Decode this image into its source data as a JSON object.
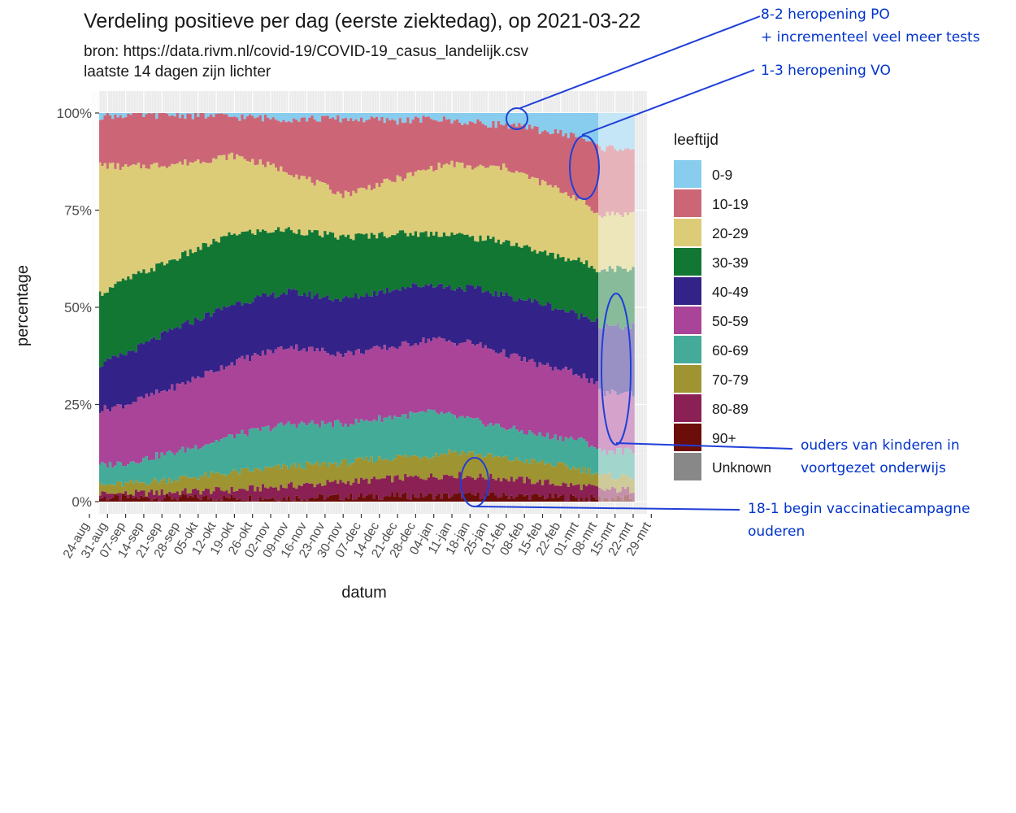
{
  "title": "Verdeling positieve per dag (eerste ziektedag), op 2021-03-22",
  "subtitle_lines": [
    "bron: https://data.rivm.nl/covid-19/COVID-19_casus_landelijk.csv",
    "laatste 14 dagen zijn lichter"
  ],
  "annotations": {
    "po": [
      "8-2 heropening PO",
      "+ incrementeel veel meer tests"
    ],
    "vo": [
      "1-3 heropening VO"
    ],
    "parents": [
      "ouders van kinderen in",
      "voortgezet onderwijs"
    ],
    "vaccination": [
      "18-1 begin vaccinatiecampagne",
      "ouderen"
    ]
  },
  "chart_data": {
    "type": "area",
    "title": "Verdeling positieve per dag (eerste ziektedag), op 2021-03-22",
    "xlabel": "datum",
    "ylabel": "percentage",
    "ylim": [
      0,
      1
    ],
    "y_ticks": [
      "0%",
      "25%",
      "50%",
      "75%",
      "100%"
    ],
    "x_tick_labels": [
      "24-aug",
      "31-aug",
      "07-sep",
      "14-sep",
      "21-sep",
      "28-sep",
      "05-okt",
      "12-okt",
      "19-okt",
      "26-okt",
      "02-nov",
      "09-nov",
      "16-nov",
      "23-nov",
      "30-nov",
      "07-dec",
      "14-dec",
      "21-dec",
      "28-dec",
      "04-jan",
      "11-jan",
      "18-jan",
      "25-jan",
      "01-feb",
      "08-feb",
      "15-feb",
      "22-feb",
      "01-mrt",
      "08-mrt",
      "15-mrt",
      "22-mrt",
      "29-mrt"
    ],
    "stacking": "cumulative share, bottom to top: 90+, 80-89, 70-79, 60-69, 50-59, 40-49, 30-39, 20-29, 10-19, 0-9, Unknown",
    "legend_title": "leeftijd",
    "legend_position": "right",
    "lighter_last_days": 14,
    "boundary_dates": [
      "24-aug",
      "07-sep",
      "28-sep",
      "19-okt",
      "09-nov",
      "30-nov",
      "21-dec",
      "04-jan",
      "11-jan",
      "18-jan",
      "01-feb",
      "15-feb",
      "01-mrt",
      "08-mrt",
      "21-mrt"
    ],
    "series": [
      {
        "name": "90+",
        "color": "#6b0d08",
        "cumulative_top": [
          0.01,
          0.01,
          0.01,
          0.01,
          0.01,
          0.012,
          0.015,
          0.015,
          0.015,
          0.016,
          0.015,
          0.013,
          0.01,
          0.008,
          0.008
        ]
      },
      {
        "name": "80-89",
        "color": "#8b2055",
        "cumulative_top": [
          0.02,
          0.02,
          0.025,
          0.03,
          0.04,
          0.05,
          0.06,
          0.065,
          0.07,
          0.065,
          0.06,
          0.05,
          0.04,
          0.035,
          0.03
        ]
      },
      {
        "name": "70-79",
        "color": "#9e9532",
        "cumulative_top": [
          0.04,
          0.045,
          0.06,
          0.075,
          0.09,
          0.1,
          0.115,
          0.12,
          0.13,
          0.125,
          0.11,
          0.1,
          0.085,
          0.075,
          0.065
        ]
      },
      {
        "name": "60-69",
        "color": "#44ab99",
        "cumulative_top": [
          0.09,
          0.1,
          0.13,
          0.17,
          0.2,
          0.2,
          0.22,
          0.23,
          0.22,
          0.21,
          0.19,
          0.17,
          0.16,
          0.14,
          0.13
        ]
      },
      {
        "name": "50-59",
        "color": "#aa4499",
        "cumulative_top": [
          0.23,
          0.25,
          0.3,
          0.36,
          0.4,
          0.38,
          0.4,
          0.42,
          0.41,
          0.41,
          0.38,
          0.35,
          0.33,
          0.3,
          0.28
        ]
      },
      {
        "name": "40-49",
        "color": "#332288",
        "cumulative_top": [
          0.34,
          0.38,
          0.45,
          0.51,
          0.54,
          0.52,
          0.55,
          0.56,
          0.55,
          0.55,
          0.53,
          0.51,
          0.48,
          0.47,
          0.45
        ]
      },
      {
        "name": "30-39",
        "color": "#117733",
        "cumulative_top": [
          0.52,
          0.57,
          0.63,
          0.69,
          0.7,
          0.68,
          0.69,
          0.69,
          0.69,
          0.68,
          0.67,
          0.64,
          0.62,
          0.6,
          0.6
        ]
      },
      {
        "name": "20-29",
        "color": "#ddcc77",
        "cumulative_top": [
          0.87,
          0.86,
          0.87,
          0.89,
          0.85,
          0.79,
          0.83,
          0.86,
          0.87,
          0.86,
          0.86,
          0.82,
          0.78,
          0.74,
          0.74
        ]
      },
      {
        "name": "10-19",
        "color": "#cc6677",
        "cumulative_top": [
          0.99,
          0.995,
          0.995,
          0.99,
          0.985,
          0.985,
          0.98,
          0.985,
          0.98,
          0.975,
          0.97,
          0.955,
          0.94,
          0.915,
          0.91
        ]
      },
      {
        "name": "0-9",
        "color": "#88ccee",
        "cumulative_top": [
          1,
          1,
          1,
          1,
          1,
          1,
          1,
          1,
          1,
          1,
          1,
          1,
          1,
          1,
          1
        ]
      },
      {
        "name": "Unknown",
        "color": "#888888",
        "cumulative_top": [
          1,
          1,
          1,
          1,
          1,
          1,
          1,
          1,
          1,
          1,
          1,
          1,
          1,
          1,
          1
        ]
      }
    ]
  }
}
